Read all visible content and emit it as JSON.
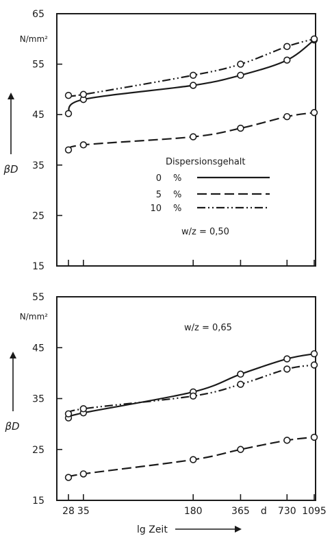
{
  "chart_data": [
    {
      "type": "line",
      "title": "",
      "ylabel": "βD",
      "yunit": "N/mm²",
      "ylim": [
        15,
        65
      ],
      "yticks": [
        "15",
        "25",
        "35",
        "45",
        "55",
        "65"
      ],
      "x_scale": "log",
      "x": [
        28,
        35,
        180,
        365,
        730,
        1095
      ],
      "legend_title": "Dispersionsgehalt",
      "legend": [
        {
          "label": "0",
          "pct": "%"
        },
        {
          "label": "5",
          "pct": "%"
        },
        {
          "label": "10",
          "pct": "%"
        }
      ],
      "annotation": "w/z = 0,50",
      "series": [
        {
          "name": "0 %",
          "style": "solid",
          "values": [
            45.2,
            48.0,
            50.8,
            52.8,
            55.8,
            59.8
          ]
        },
        {
          "name": "5 %",
          "style": "dashed",
          "values": [
            38.0,
            39.0,
            40.6,
            42.3,
            44.6,
            45.4
          ]
        },
        {
          "name": "10 %",
          "style": "dashdotdot",
          "values": [
            48.8,
            49.0,
            52.8,
            55.0,
            58.5,
            60.0
          ]
        }
      ]
    },
    {
      "type": "line",
      "title": "",
      "ylabel": "βD",
      "yunit": "N/mm²",
      "ylim": [
        15,
        55
      ],
      "yticks": [
        "15",
        "25",
        "35",
        "45",
        "55"
      ],
      "x_scale": "log",
      "x": [
        28,
        35,
        180,
        365,
        730,
        1095
      ],
      "xticks": [
        "28",
        "35",
        "180",
        "365",
        "730",
        "1095"
      ],
      "xunit": "d",
      "xlabel": "lg  Zeit",
      "annotation": "w/z = 0,65",
      "series": [
        {
          "name": "0 %",
          "style": "solid",
          "values": [
            31.2,
            32.2,
            36.3,
            39.8,
            42.8,
            43.8
          ]
        },
        {
          "name": "5 %",
          "style": "dashed",
          "values": [
            19.5,
            20.2,
            23.0,
            25.0,
            26.8,
            27.4
          ]
        },
        {
          "name": "10 %",
          "style": "dashdotdot",
          "values": [
            32.0,
            33.0,
            35.5,
            37.8,
            40.8,
            41.6
          ]
        }
      ]
    }
  ]
}
